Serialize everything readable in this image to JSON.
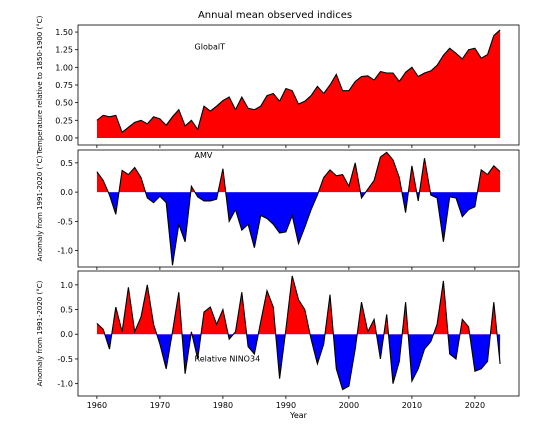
{
  "figure": {
    "title": "Annual mean observed indices"
  },
  "chart_data": [
    {
      "type": "area",
      "annotation": "GlobalT",
      "ylabel": "Temperature relative to 1850-1900 (°C)",
      "xlabel": "",
      "xlim": [
        1957,
        2027
      ],
      "ylim": [
        -0.1,
        1.6
      ],
      "yticks": [
        "0.00",
        "0.25",
        "0.50",
        "0.75",
        "1.00",
        "1.25",
        "1.50"
      ],
      "xticks": [],
      "baseline": 0,
      "positive_color": "#ff0000",
      "negative_color": "#0000ff",
      "x": [
        1960,
        1961,
        1962,
        1963,
        1964,
        1965,
        1966,
        1967,
        1968,
        1969,
        1970,
        1971,
        1972,
        1973,
        1974,
        1975,
        1976,
        1977,
        1978,
        1979,
        1980,
        1981,
        1982,
        1983,
        1984,
        1985,
        1986,
        1987,
        1988,
        1989,
        1990,
        1991,
        1992,
        1993,
        1994,
        1995,
        1996,
        1997,
        1998,
        1999,
        2000,
        2001,
        2002,
        2003,
        2004,
        2005,
        2006,
        2007,
        2008,
        2009,
        2010,
        2011,
        2012,
        2013,
        2014,
        2015,
        2016,
        2017,
        2018,
        2019,
        2020,
        2021,
        2022,
        2023,
        2024
      ],
      "values": [
        0.25,
        0.32,
        0.3,
        0.32,
        0.08,
        0.15,
        0.22,
        0.25,
        0.2,
        0.3,
        0.27,
        0.18,
        0.3,
        0.4,
        0.17,
        0.25,
        0.12,
        0.45,
        0.38,
        0.45,
        0.53,
        0.58,
        0.4,
        0.58,
        0.42,
        0.4,
        0.45,
        0.6,
        0.63,
        0.52,
        0.7,
        0.67,
        0.48,
        0.52,
        0.6,
        0.73,
        0.63,
        0.75,
        0.9,
        0.67,
        0.67,
        0.8,
        0.87,
        0.88,
        0.82,
        0.94,
        0.92,
        0.92,
        0.8,
        0.93,
        1.0,
        0.87,
        0.92,
        0.95,
        1.03,
        1.17,
        1.27,
        1.2,
        1.12,
        1.25,
        1.27,
        1.13,
        1.18,
        1.45,
        1.53
      ]
    },
    {
      "type": "area",
      "annotation": "AMV",
      "ylabel": "Anomaly from 1991-2020 (°C)",
      "xlabel": "",
      "xlim": [
        1957,
        2027
      ],
      "ylim": [
        -1.28,
        0.72
      ],
      "yticks": [
        "0.5",
        "0.0",
        "-0.5",
        "-1.0"
      ],
      "xticks": [],
      "baseline": 0,
      "positive_color": "#ff0000",
      "negative_color": "#0000ff",
      "x": [
        1960,
        1961,
        1962,
        1963,
        1964,
        1965,
        1966,
        1967,
        1968,
        1969,
        1970,
        1971,
        1972,
        1973,
        1974,
        1975,
        1976,
        1977,
        1978,
        1979,
        1980,
        1981,
        1982,
        1983,
        1984,
        1985,
        1986,
        1987,
        1988,
        1989,
        1990,
        1991,
        1992,
        1993,
        1994,
        1995,
        1996,
        1997,
        1998,
        1999,
        2000,
        2001,
        2002,
        2003,
        2004,
        2005,
        2006,
        2007,
        2008,
        2009,
        2010,
        2011,
        2012,
        2013,
        2014,
        2015,
        2016,
        2017,
        2018,
        2019,
        2020,
        2021,
        2022,
        2023,
        2024
      ],
      "values": [
        0.35,
        0.2,
        -0.05,
        -0.38,
        0.37,
        0.3,
        0.42,
        0.25,
        -0.1,
        -0.18,
        -0.07,
        -0.18,
        -1.25,
        -0.55,
        -0.85,
        0.1,
        -0.08,
        -0.15,
        -0.15,
        -0.12,
        0.4,
        -0.5,
        -0.3,
        -0.65,
        -0.55,
        -0.95,
        -0.4,
        -0.45,
        -0.55,
        -0.7,
        -0.68,
        -0.4,
        -0.88,
        -0.6,
        -0.3,
        -0.05,
        0.25,
        0.38,
        0.28,
        0.3,
        0.1,
        0.5,
        -0.1,
        0.05,
        0.2,
        0.6,
        0.68,
        0.55,
        0.25,
        -0.35,
        0.45,
        -0.15,
        0.58,
        -0.05,
        -0.1,
        -0.85,
        -0.08,
        -0.1,
        -0.42,
        -0.3,
        -0.25,
        0.38,
        0.3,
        0.45,
        0.35
      ]
    },
    {
      "type": "area",
      "annotation": "Relative NINO34",
      "ylabel": "Anomaly from 1991-2020 (°C)",
      "xlabel": "Year",
      "xlim": [
        1957,
        2027
      ],
      "ylim": [
        -1.25,
        1.28
      ],
      "yticks": [
        "1.0",
        "0.5",
        "0.0",
        "-0.5",
        "-1.0"
      ],
      "xticks": [
        "1960",
        "1970",
        "1980",
        "1990",
        "2000",
        "2010",
        "2020"
      ],
      "baseline": 0,
      "positive_color": "#ff0000",
      "negative_color": "#0000ff",
      "x": [
        1960,
        1961,
        1962,
        1963,
        1964,
        1965,
        1966,
        1967,
        1968,
        1969,
        1970,
        1971,
        1972,
        1973,
        1974,
        1975,
        1976,
        1977,
        1978,
        1979,
        1980,
        1981,
        1982,
        1983,
        1984,
        1985,
        1986,
        1987,
        1988,
        1989,
        1990,
        1991,
        1992,
        1993,
        1994,
        1995,
        1996,
        1997,
        1998,
        1999,
        2000,
        2001,
        2002,
        2003,
        2004,
        2005,
        2006,
        2007,
        2008,
        2009,
        2010,
        2011,
        2012,
        2013,
        2014,
        2015,
        2016,
        2017,
        2018,
        2019,
        2020,
        2021,
        2022,
        2023,
        2024
      ],
      "values": [
        0.22,
        0.1,
        -0.3,
        0.55,
        0.05,
        0.95,
        0.05,
        0.35,
        1.0,
        0.2,
        -0.2,
        -0.7,
        0.05,
        0.85,
        -0.8,
        0.05,
        -0.5,
        0.45,
        0.55,
        0.2,
        0.5,
        -0.1,
        0.05,
        0.85,
        -0.25,
        -0.4,
        0.25,
        0.88,
        0.55,
        -0.9,
        0.1,
        1.18,
        0.7,
        0.5,
        -0.1,
        -0.6,
        -0.2,
        0.8,
        -0.7,
        -1.12,
        -1.05,
        -0.3,
        0.65,
        0.05,
        0.3,
        -0.5,
        0.4,
        -1.0,
        -0.55,
        0.65,
        -0.95,
        -0.7,
        -0.3,
        -0.15,
        0.2,
        1.08,
        -0.4,
        -0.5,
        0.3,
        0.15,
        -0.75,
        -0.7,
        -0.55,
        0.65,
        -0.6
      ]
    }
  ]
}
